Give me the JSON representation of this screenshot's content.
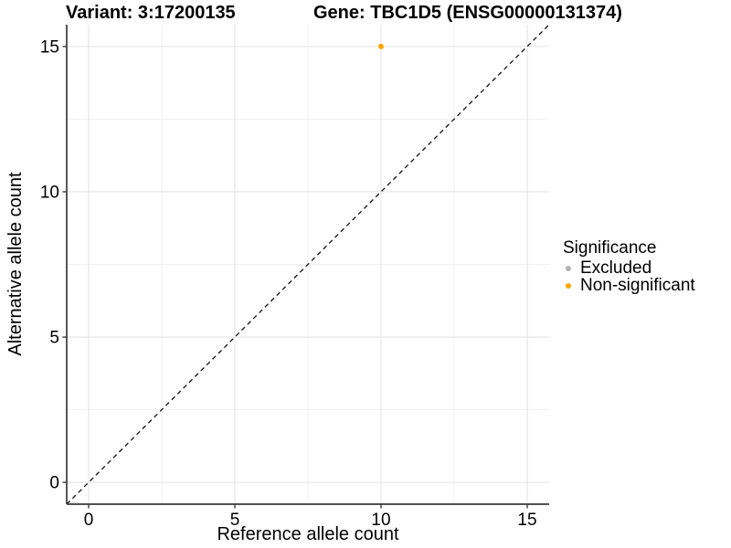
{
  "header": {
    "variant_title": "Variant: 3:17200135",
    "gene_title": "Gene: TBC1D5 (ENSG00000131374)"
  },
  "chart_data": {
    "type": "scatter",
    "title": "Variant: 3:17200135 — Gene: TBC1D5 (ENSG00000131374)",
    "xlabel": "Reference allele count",
    "ylabel": "Alternative allele count",
    "x_domain": [
      -0.75,
      15.75
    ],
    "y_domain": [
      -0.75,
      15.75
    ],
    "x_ticks": [
      0,
      5,
      10,
      15
    ],
    "y_ticks": [
      0,
      5,
      10,
      15
    ],
    "x_minor_gridlines": [
      2.5,
      7.5,
      12.5
    ],
    "y_minor_gridlines": [
      2.5,
      7.5,
      12.5
    ],
    "grid": "major+minor",
    "identity_line": {
      "slope": 1,
      "intercept": 0,
      "style": "dashed",
      "color": "#111111"
    },
    "series": [
      {
        "name": "Excluded",
        "color": "#B3B3B3",
        "points": []
      },
      {
        "name": "Non-significant",
        "color": "#FFA500",
        "points": [
          {
            "x": 10,
            "y": 15
          }
        ]
      }
    ],
    "legend": {
      "title": "Significance",
      "position": "right",
      "items": [
        {
          "label": "Excluded",
          "color": "#B3B3B3"
        },
        {
          "label": "Non-significant",
          "color": "#FFA500"
        }
      ]
    }
  }
}
